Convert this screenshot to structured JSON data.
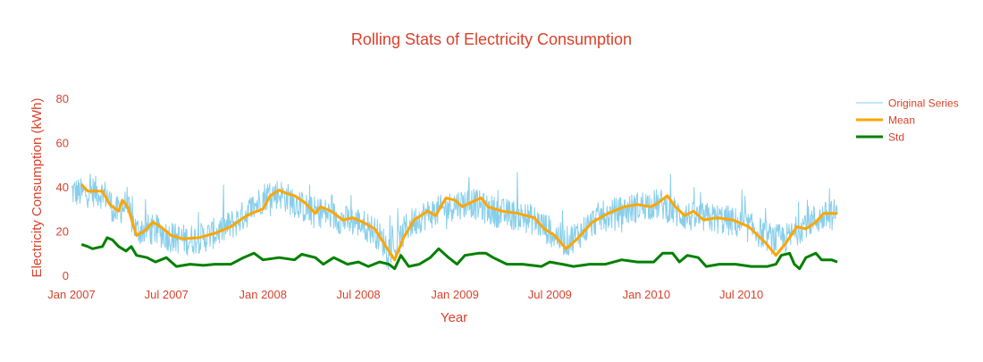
{
  "chart_data": {
    "type": "line",
    "title": "Rolling Stats of Electricity Consumption",
    "xlabel": "Year",
    "ylabel": "Electricity Consumption (kWh)",
    "x_range": [
      "2007-01-01",
      "2010-12-31"
    ],
    "ylim": [
      0,
      80
    ],
    "y_ticks": [
      0,
      20,
      40,
      60,
      80
    ],
    "x_ticks": [
      {
        "date": "2007-01-01",
        "label": "Jan 2007"
      },
      {
        "date": "2007-07-01",
        "label": "Jul 2007"
      },
      {
        "date": "2008-01-01",
        "label": "Jan 2008"
      },
      {
        "date": "2008-07-01",
        "label": "Jul 2008"
      },
      {
        "date": "2009-01-01",
        "label": "Jan 2009"
      },
      {
        "date": "2009-07-01",
        "label": "Jul 2009"
      },
      {
        "date": "2010-01-01",
        "label": "Jan 2010"
      },
      {
        "date": "2010-07-01",
        "label": "Jul 2010"
      }
    ],
    "grid": false,
    "legend_position": "top-right",
    "text_color": "#d9412b",
    "series": [
      {
        "name": "Original Series",
        "color": "#87ceeb",
        "line_width": 1,
        "base": [
          [
            "2007-01-01",
            38
          ],
          [
            "2007-01-20",
            37
          ],
          [
            "2007-02-15",
            38
          ],
          [
            "2007-03-10",
            36
          ],
          [
            "2007-03-25",
            28
          ],
          [
            "2007-04-15",
            32
          ],
          [
            "2007-05-05",
            20
          ],
          [
            "2007-05-25",
            21
          ],
          [
            "2007-06-15",
            20
          ],
          [
            "2007-07-10",
            17
          ],
          [
            "2007-08-10",
            16
          ],
          [
            "2007-09-10",
            17
          ],
          [
            "2007-10-10",
            20
          ],
          [
            "2007-11-10",
            24
          ],
          [
            "2007-12-10",
            30
          ],
          [
            "2008-01-05",
            36
          ],
          [
            "2008-02-01",
            37
          ],
          [
            "2008-03-01",
            33
          ],
          [
            "2008-04-01",
            29
          ],
          [
            "2008-05-01",
            28
          ],
          [
            "2008-06-01",
            25
          ],
          [
            "2008-07-01",
            24
          ],
          [
            "2008-08-01",
            20
          ],
          [
            "2008-08-25",
            13
          ],
          [
            "2008-09-10",
            12
          ],
          [
            "2008-10-01",
            22
          ],
          [
            "2008-11-01",
            27
          ],
          [
            "2008-12-01",
            29
          ],
          [
            "2009-01-01",
            32
          ],
          [
            "2009-02-01",
            33
          ],
          [
            "2009-03-01",
            30
          ],
          [
            "2009-04-01",
            28
          ],
          [
            "2009-05-01",
            27
          ],
          [
            "2009-06-01",
            25
          ],
          [
            "2009-07-01",
            20
          ],
          [
            "2009-08-01",
            15
          ],
          [
            "2009-09-01",
            20
          ],
          [
            "2009-10-01",
            26
          ],
          [
            "2009-11-01",
            28
          ],
          [
            "2009-12-01",
            30
          ],
          [
            "2010-01-01",
            32
          ],
          [
            "2010-02-01",
            32
          ],
          [
            "2010-03-01",
            28
          ],
          [
            "2010-04-01",
            26
          ],
          [
            "2010-05-01",
            26
          ],
          [
            "2010-06-01",
            25
          ],
          [
            "2010-07-01",
            23
          ],
          [
            "2010-08-01",
            20
          ],
          [
            "2010-09-01",
            16
          ],
          [
            "2010-10-01",
            17
          ],
          [
            "2010-11-01",
            24
          ],
          [
            "2010-12-31",
            28
          ]
        ],
        "noise_amplitude": 7,
        "max": 80,
        "min": 0
      },
      {
        "name": "Mean",
        "color": "#ffa500",
        "line_width": 3,
        "points": [
          [
            "2007-01-20",
            41
          ],
          [
            "2007-02-01",
            38
          ],
          [
            "2007-02-15",
            38
          ],
          [
            "2007-03-01",
            38
          ],
          [
            "2007-03-15",
            32
          ],
          [
            "2007-04-01",
            29
          ],
          [
            "2007-04-08",
            34
          ],
          [
            "2007-04-18",
            31
          ],
          [
            "2007-05-05",
            18
          ],
          [
            "2007-05-20",
            20
          ],
          [
            "2007-06-05",
            24
          ],
          [
            "2007-06-20",
            22
          ],
          [
            "2007-07-10",
            18
          ],
          [
            "2007-08-01",
            16.5
          ],
          [
            "2007-09-01",
            17
          ],
          [
            "2007-10-01",
            19
          ],
          [
            "2007-11-01",
            22
          ],
          [
            "2007-11-25",
            26
          ],
          [
            "2007-12-10",
            28
          ],
          [
            "2008-01-01",
            30
          ],
          [
            "2008-01-15",
            36
          ],
          [
            "2008-02-01",
            38.5
          ],
          [
            "2008-02-15",
            37
          ],
          [
            "2008-03-01",
            36
          ],
          [
            "2008-03-20",
            33
          ],
          [
            "2008-04-10",
            28
          ],
          [
            "2008-04-20",
            31
          ],
          [
            "2008-05-10",
            29
          ],
          [
            "2008-06-01",
            25
          ],
          [
            "2008-06-20",
            26
          ],
          [
            "2008-07-10",
            24
          ],
          [
            "2008-08-01",
            21
          ],
          [
            "2008-08-20",
            14
          ],
          [
            "2008-09-08",
            7
          ],
          [
            "2008-09-25",
            17
          ],
          [
            "2008-10-15",
            25
          ],
          [
            "2008-11-10",
            29
          ],
          [
            "2008-11-25",
            27
          ],
          [
            "2008-12-15",
            35
          ],
          [
            "2009-01-01",
            34
          ],
          [
            "2009-01-15",
            31
          ],
          [
            "2009-02-01",
            33
          ],
          [
            "2009-02-20",
            35
          ],
          [
            "2009-03-05",
            31
          ],
          [
            "2009-04-01",
            29
          ],
          [
            "2009-05-01",
            28
          ],
          [
            "2009-06-01",
            26
          ],
          [
            "2009-06-20",
            21
          ],
          [
            "2009-07-10",
            18
          ],
          [
            "2009-08-01",
            12
          ],
          [
            "2009-08-20",
            16
          ],
          [
            "2009-09-20",
            24
          ],
          [
            "2009-10-20",
            28
          ],
          [
            "2009-11-20",
            31
          ],
          [
            "2009-12-15",
            32
          ],
          [
            "2010-01-10",
            31
          ],
          [
            "2010-01-25",
            33
          ],
          [
            "2010-02-10",
            36
          ],
          [
            "2010-02-25",
            31
          ],
          [
            "2010-03-15",
            27
          ],
          [
            "2010-04-01",
            29
          ],
          [
            "2010-04-20",
            25
          ],
          [
            "2010-05-15",
            26
          ],
          [
            "2010-06-15",
            25
          ],
          [
            "2010-07-15",
            22
          ],
          [
            "2010-08-15",
            15
          ],
          [
            "2010-09-05",
            9
          ],
          [
            "2010-09-25",
            15
          ],
          [
            "2010-10-15",
            22
          ],
          [
            "2010-11-01",
            21
          ],
          [
            "2010-11-20",
            24
          ],
          [
            "2010-12-05",
            28
          ],
          [
            "2010-12-31",
            28
          ]
        ]
      },
      {
        "name": "Std",
        "color": "#008000",
        "line_width": 3,
        "points": [
          [
            "2007-01-20",
            14
          ],
          [
            "2007-02-01",
            13
          ],
          [
            "2007-02-10",
            12
          ],
          [
            "2007-03-01",
            13
          ],
          [
            "2007-03-10",
            17
          ],
          [
            "2007-03-20",
            16
          ],
          [
            "2007-04-01",
            13
          ],
          [
            "2007-04-15",
            11
          ],
          [
            "2007-04-25",
            13
          ],
          [
            "2007-05-05",
            9
          ],
          [
            "2007-05-25",
            8
          ],
          [
            "2007-06-10",
            6
          ],
          [
            "2007-07-01",
            8
          ],
          [
            "2007-07-20",
            4
          ],
          [
            "2007-08-15",
            5
          ],
          [
            "2007-09-10",
            4.5
          ],
          [
            "2007-10-01",
            5
          ],
          [
            "2007-11-01",
            5
          ],
          [
            "2007-11-25",
            8
          ],
          [
            "2007-12-15",
            10
          ],
          [
            "2008-01-01",
            7
          ],
          [
            "2008-02-01",
            8
          ],
          [
            "2008-03-01",
            7
          ],
          [
            "2008-03-15",
            9.5
          ],
          [
            "2008-04-10",
            8
          ],
          [
            "2008-04-25",
            5
          ],
          [
            "2008-05-15",
            8
          ],
          [
            "2008-06-10",
            5
          ],
          [
            "2008-07-01",
            6
          ],
          [
            "2008-07-20",
            4
          ],
          [
            "2008-08-10",
            6
          ],
          [
            "2008-08-28",
            5
          ],
          [
            "2008-09-08",
            3
          ],
          [
            "2008-09-20",
            9
          ],
          [
            "2008-10-05",
            4
          ],
          [
            "2008-10-25",
            5
          ],
          [
            "2008-11-15",
            8
          ],
          [
            "2008-12-01",
            12
          ],
          [
            "2008-12-20",
            8
          ],
          [
            "2009-01-05",
            5
          ],
          [
            "2009-01-20",
            9
          ],
          [
            "2009-02-15",
            10
          ],
          [
            "2009-03-01",
            10
          ],
          [
            "2009-03-15",
            8
          ],
          [
            "2009-04-10",
            5
          ],
          [
            "2009-05-10",
            5
          ],
          [
            "2009-06-15",
            4
          ],
          [
            "2009-07-01",
            6
          ],
          [
            "2009-07-25",
            5
          ],
          [
            "2009-08-15",
            4
          ],
          [
            "2009-09-15",
            5
          ],
          [
            "2009-10-15",
            5
          ],
          [
            "2009-11-15",
            7
          ],
          [
            "2009-12-15",
            6
          ],
          [
            "2010-01-15",
            6
          ],
          [
            "2010-02-01",
            10
          ],
          [
            "2010-02-20",
            10
          ],
          [
            "2010-03-05",
            6
          ],
          [
            "2010-03-20",
            9
          ],
          [
            "2010-04-10",
            8
          ],
          [
            "2010-04-25",
            4
          ],
          [
            "2010-05-20",
            5
          ],
          [
            "2010-06-20",
            5
          ],
          [
            "2010-07-20",
            4
          ],
          [
            "2010-08-20",
            4
          ],
          [
            "2010-09-05",
            5
          ],
          [
            "2010-09-15",
            9
          ],
          [
            "2010-10-01",
            10
          ],
          [
            "2010-10-10",
            5
          ],
          [
            "2010-10-20",
            3
          ],
          [
            "2010-11-01",
            8
          ],
          [
            "2010-11-20",
            10
          ],
          [
            "2010-12-01",
            7
          ],
          [
            "2010-12-20",
            7
          ],
          [
            "2010-12-31",
            6
          ]
        ]
      }
    ]
  }
}
